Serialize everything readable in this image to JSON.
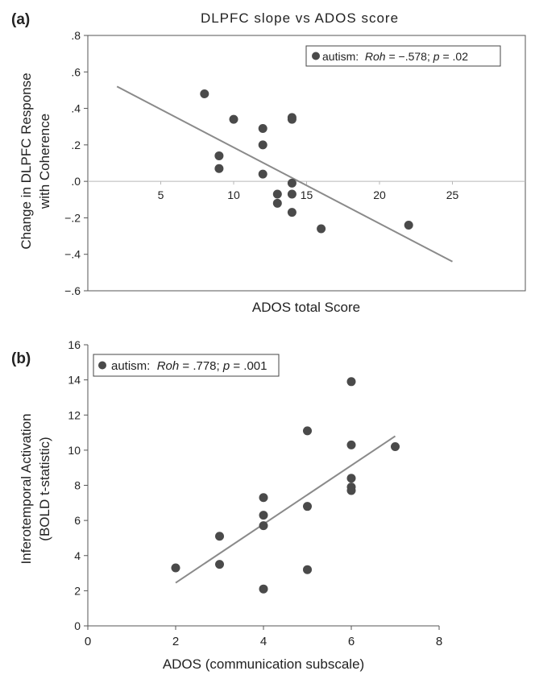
{
  "chart_data": [
    {
      "panel_label": "(a)",
      "type": "scatter",
      "title": "DLPFC slope vs ADOS score",
      "xlabel": "ADOS total Score",
      "ylabel_lines": [
        "Change in DLPFC Response",
        "with Coherence"
      ],
      "xlim": [
        0,
        30
      ],
      "ylim": [
        -0.6,
        0.8
      ],
      "x_ticks": [
        5,
        10,
        15,
        20,
        25
      ],
      "x_tick_labels": [
        "5",
        "10",
        "15",
        "20",
        "25"
      ],
      "y_ticks": [
        0.8,
        0.6,
        0.4,
        0.2,
        0.0,
        -0.2,
        -0.4,
        -0.6
      ],
      "y_tick_labels": [
        ".8",
        ".6",
        ".4",
        ".2",
        ".0",
        "−.2",
        "−.4",
        "−.6"
      ],
      "x_axis_at_zero": true,
      "grid": false,
      "legend": {
        "position": "top-right",
        "prefix": "autism:  ",
        "stat": "Roh",
        "stat_value": " = −.578; ",
        "p": "p",
        "p_value": " = .02"
      },
      "points": [
        {
          "x": 8,
          "y": 0.48
        },
        {
          "x": 10,
          "y": 0.34
        },
        {
          "x": 9,
          "y": 0.14
        },
        {
          "x": 9,
          "y": 0.07
        },
        {
          "x": 12,
          "y": 0.29
        },
        {
          "x": 12,
          "y": 0.2
        },
        {
          "x": 12,
          "y": 0.04
        },
        {
          "x": 14,
          "y": 0.35
        },
        {
          "x": 14,
          "y": 0.34
        },
        {
          "x": 13,
          "y": -0.07
        },
        {
          "x": 13,
          "y": -0.12
        },
        {
          "x": 14,
          "y": -0.01
        },
        {
          "x": 14,
          "y": -0.07
        },
        {
          "x": 14,
          "y": -0.17
        },
        {
          "x": 16,
          "y": -0.26
        },
        {
          "x": 22,
          "y": -0.24
        }
      ],
      "fit_line": {
        "x": [
          2,
          25
        ],
        "y": [
          0.52,
          -0.44
        ]
      }
    },
    {
      "panel_label": "(b)",
      "type": "scatter",
      "title": "",
      "xlabel": "ADOS (communication subscale)",
      "ylabel_lines": [
        "Inferotemporal Activation",
        "(BOLD t-statistic)"
      ],
      "xlim": [
        0,
        8
      ],
      "ylim": [
        0,
        16
      ],
      "x_ticks": [
        0,
        2,
        4,
        6,
        8
      ],
      "x_tick_labels": [
        "0",
        "2",
        "4",
        "6",
        "8"
      ],
      "y_ticks": [
        0,
        2,
        4,
        6,
        8,
        10,
        12,
        14,
        16
      ],
      "y_tick_labels": [
        "0",
        "2",
        "4",
        "6",
        "8",
        "10",
        "12",
        "14",
        "16"
      ],
      "x_axis_at_zero": false,
      "grid": false,
      "legend": {
        "position": "top-left",
        "prefix": "autism:  ",
        "stat": "Roh",
        "stat_value": " = .778; ",
        "p": "p",
        "p_value": " = .001"
      },
      "points": [
        {
          "x": 2,
          "y": 3.3
        },
        {
          "x": 3,
          "y": 5.1
        },
        {
          "x": 3,
          "y": 3.5
        },
        {
          "x": 4,
          "y": 7.3
        },
        {
          "x": 4,
          "y": 6.3
        },
        {
          "x": 4,
          "y": 5.7
        },
        {
          "x": 4,
          "y": 2.1
        },
        {
          "x": 5,
          "y": 11.1
        },
        {
          "x": 5,
          "y": 6.8
        },
        {
          "x": 5,
          "y": 3.2
        },
        {
          "x": 6,
          "y": 13.9
        },
        {
          "x": 6,
          "y": 10.3
        },
        {
          "x": 6,
          "y": 8.4
        },
        {
          "x": 6,
          "y": 7.9
        },
        {
          "x": 6,
          "y": 7.7
        },
        {
          "x": 7,
          "y": 10.2
        }
      ],
      "fit_line": {
        "x": [
          2,
          7
        ],
        "y": [
          2.45,
          10.8
        ]
      }
    }
  ],
  "colors": {
    "point": "#4a4a4a",
    "fit_line": "#8a8a8a",
    "axis": "#555555",
    "text": "#222222"
  }
}
